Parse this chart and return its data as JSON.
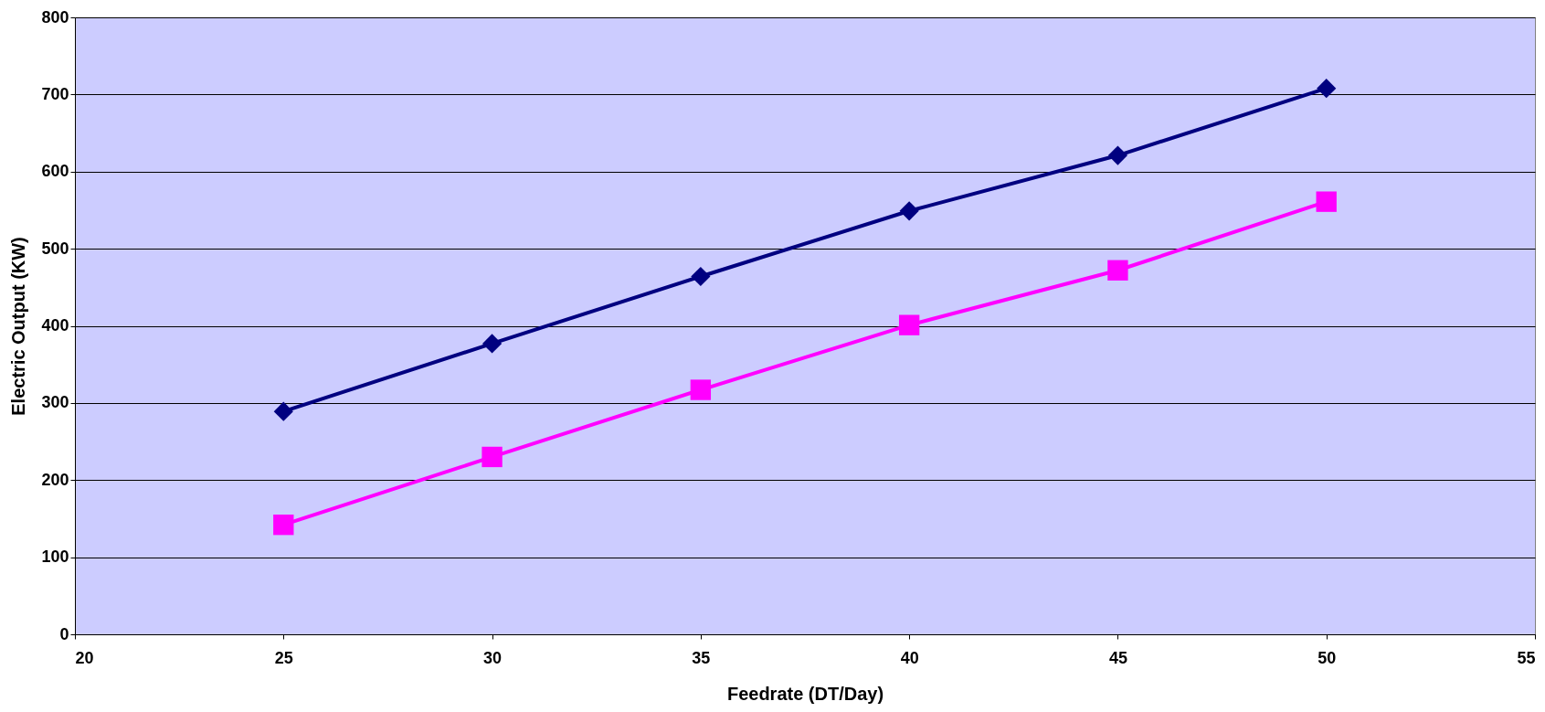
{
  "chart_data": {
    "type": "line",
    "xlabel": "Feedrate (DT/Day)",
    "ylabel": "Electric Output (KW)",
    "xlim": [
      20,
      55
    ],
    "xticks": [
      20,
      25,
      30,
      35,
      40,
      45,
      50,
      55
    ],
    "ylim": [
      0,
      800
    ],
    "yticks": [
      0,
      100,
      200,
      300,
      400,
      500,
      600,
      700,
      800
    ],
    "grid": "y",
    "line_style": "solid",
    "x": [
      25,
      30,
      35,
      40,
      45,
      50
    ],
    "series": [
      {
        "color": "#000080",
        "marker": "diamond",
        "values": [
          289,
          377,
          464,
          549,
          621,
          708
        ]
      },
      {
        "color": "#ff00ff",
        "marker": "square",
        "values": [
          142,
          230,
          317,
          401,
          472,
          561
        ]
      }
    ]
  }
}
